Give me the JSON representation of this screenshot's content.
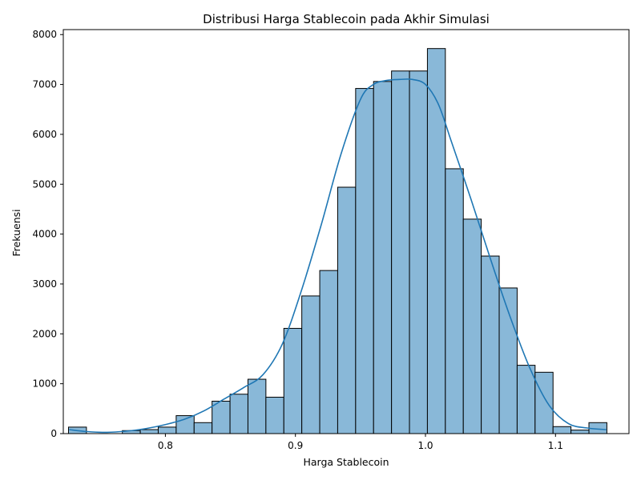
{
  "chart_data": {
    "type": "bar",
    "title": "Distribusi Harga Stablecoin pada Akhir Simulasi",
    "xlabel": "Harga Stablecoin",
    "ylabel": "Frekuensi",
    "xlim": [
      0.7215,
      1.1565
    ],
    "ylim": [
      0,
      8100
    ],
    "xticks": [
      0.8,
      0.9,
      1.0,
      1.1
    ],
    "xtick_labels": [
      "0.8",
      "0.9",
      "1.0",
      "1.1"
    ],
    "yticks": [
      0,
      1000,
      2000,
      3000,
      4000,
      5000,
      6000,
      7000,
      8000
    ],
    "ytick_labels": [
      "0",
      "1000",
      "2000",
      "3000",
      "4000",
      "5000",
      "6000",
      "7000",
      "8000"
    ],
    "grid": false,
    "bar_color": "#89b8d8",
    "bar_edge_color": "#000000",
    "kde_color": "#1f77b4",
    "bins": [
      {
        "x0": 0.7255,
        "x1": 0.7393,
        "value": 130
      },
      {
        "x0": 0.7393,
        "x1": 0.7531,
        "value": 0
      },
      {
        "x0": 0.7531,
        "x1": 0.7669,
        "value": 0
      },
      {
        "x0": 0.7669,
        "x1": 0.7807,
        "value": 60
      },
      {
        "x0": 0.7807,
        "x1": 0.7945,
        "value": 80
      },
      {
        "x0": 0.7945,
        "x1": 0.8083,
        "value": 130
      },
      {
        "x0": 0.8083,
        "x1": 0.8221,
        "value": 360
      },
      {
        "x0": 0.8221,
        "x1": 0.8359,
        "value": 220
      },
      {
        "x0": 0.8359,
        "x1": 0.8497,
        "value": 650
      },
      {
        "x0": 0.8497,
        "x1": 0.8635,
        "value": 790
      },
      {
        "x0": 0.8635,
        "x1": 0.8773,
        "value": 1090
      },
      {
        "x0": 0.8773,
        "x1": 0.8911,
        "value": 730
      },
      {
        "x0": 0.8911,
        "x1": 0.9049,
        "value": 2110
      },
      {
        "x0": 0.9049,
        "x1": 0.9187,
        "value": 2760
      },
      {
        "x0": 0.9187,
        "x1": 0.9325,
        "value": 3270
      },
      {
        "x0": 0.9325,
        "x1": 0.9463,
        "value": 4940
      },
      {
        "x0": 0.9463,
        "x1": 0.9601,
        "value": 6920
      },
      {
        "x0": 0.9601,
        "x1": 0.9739,
        "value": 7060
      },
      {
        "x0": 0.9739,
        "x1": 0.9877,
        "value": 7270
      },
      {
        "x0": 0.9877,
        "x1": 1.0015,
        "value": 7270
      },
      {
        "x0": 1.0015,
        "x1": 1.0153,
        "value": 7720
      },
      {
        "x0": 1.0153,
        "x1": 1.0291,
        "value": 5310
      },
      {
        "x0": 1.0291,
        "x1": 1.0429,
        "value": 4300
      },
      {
        "x0": 1.0429,
        "x1": 1.0567,
        "value": 3560
      },
      {
        "x0": 1.0567,
        "x1": 1.0705,
        "value": 2920
      },
      {
        "x0": 1.0705,
        "x1": 1.0843,
        "value": 1370
      },
      {
        "x0": 1.0843,
        "x1": 1.0981,
        "value": 1230
      },
      {
        "x0": 1.0981,
        "x1": 1.1119,
        "value": 140
      },
      {
        "x0": 1.1119,
        "x1": 1.1257,
        "value": 70
      },
      {
        "x0": 1.1257,
        "x1": 1.1395,
        "value": 220
      }
    ],
    "kde": {
      "x": [
        0.726,
        0.74,
        0.755,
        0.77,
        0.785,
        0.8,
        0.815,
        0.83,
        0.845,
        0.86,
        0.875,
        0.89,
        0.905,
        0.92,
        0.935,
        0.95,
        0.96,
        0.97,
        0.98,
        0.99,
        1.0,
        1.01,
        1.02,
        1.035,
        1.05,
        1.065,
        1.08,
        1.095,
        1.11,
        1.125,
        1.139
      ],
      "y": [
        80,
        40,
        25,
        50,
        100,
        180,
        290,
        460,
        690,
        920,
        1180,
        1800,
        2900,
        4200,
        5600,
        6700,
        7000,
        7080,
        7100,
        7100,
        7000,
        6600,
        5850,
        4700,
        3500,
        2350,
        1330,
        570,
        200,
        110,
        80
      ]
    }
  }
}
